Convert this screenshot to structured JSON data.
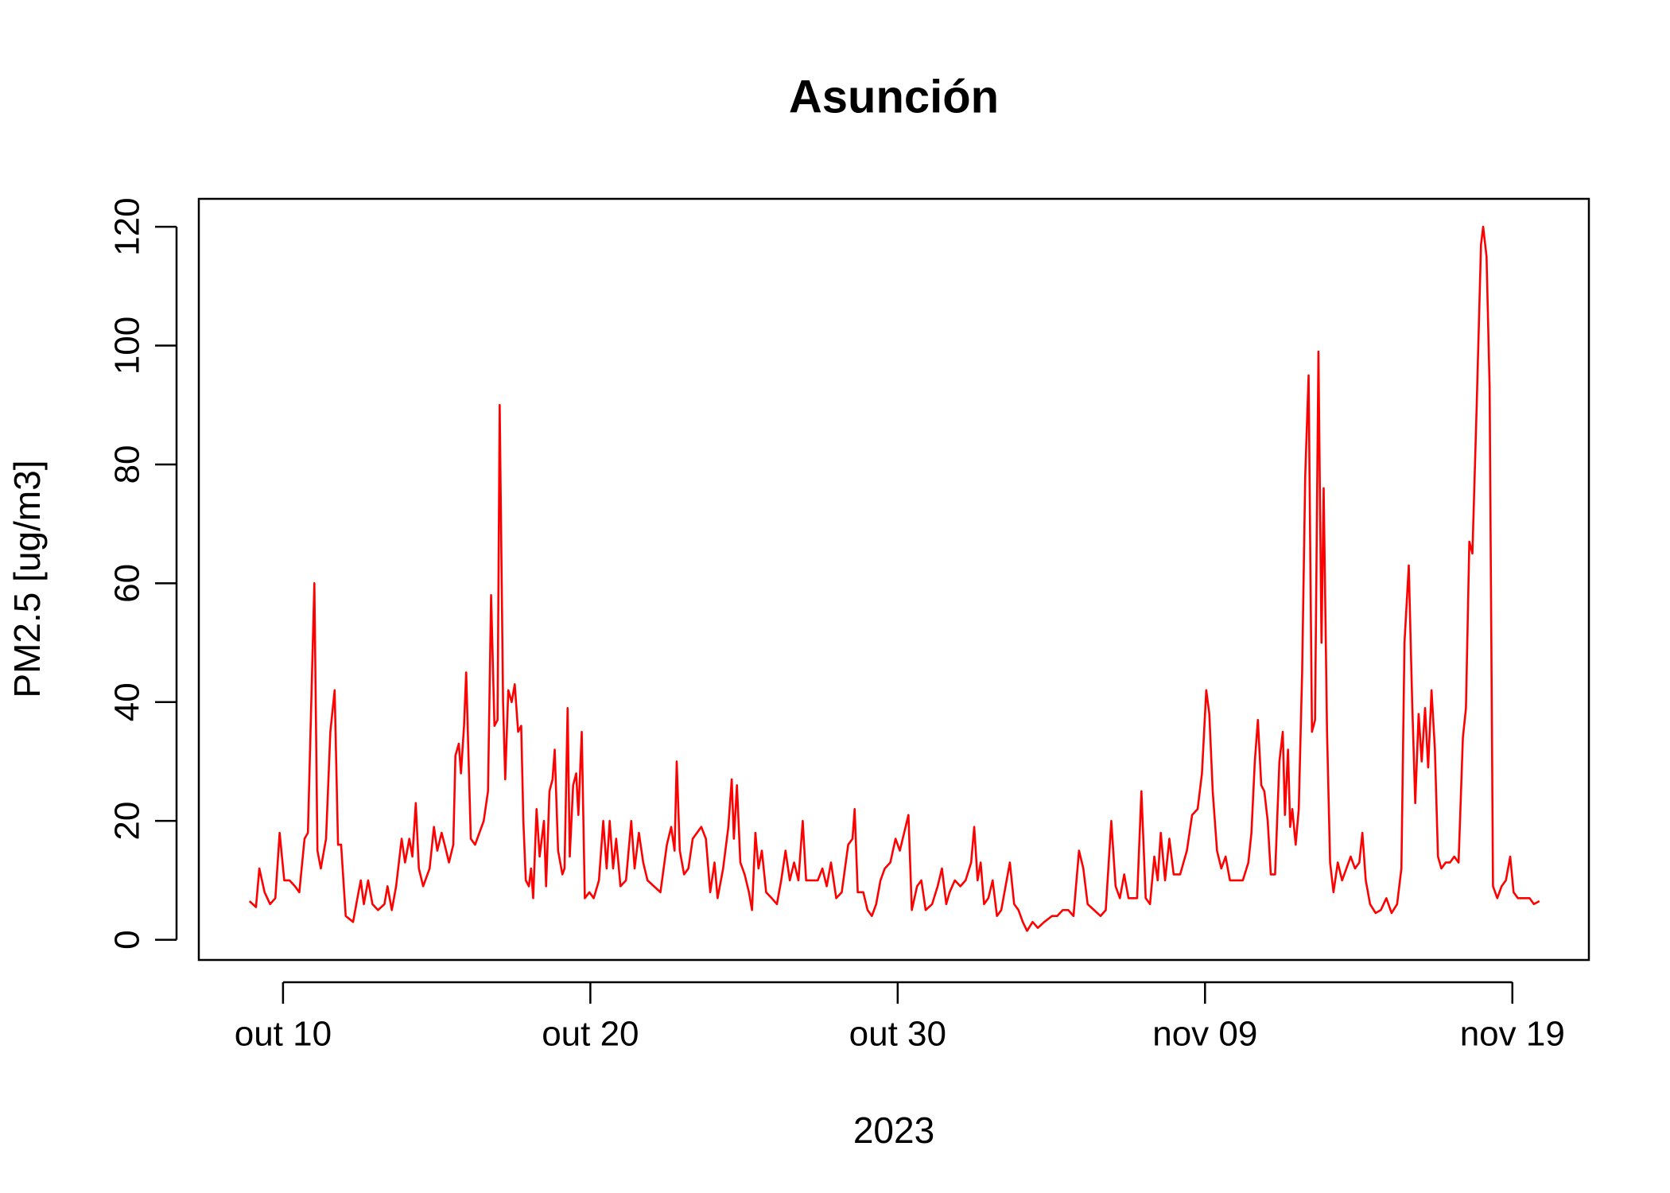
{
  "chart_data": {
    "type": "line",
    "title": "Asunción",
    "x_label": "2023",
    "y_label": "PM2.5 [ug/m3]",
    "xlim": [
      7.26,
      52.49
    ],
    "ylim": [
      -3.4,
      124.7
    ],
    "xticks": [
      {
        "value": 10,
        "label": "out 10"
      },
      {
        "value": 20,
        "label": "out 20"
      },
      {
        "value": 30,
        "label": "out 30"
      },
      {
        "value": 40,
        "label": "nov 09"
      },
      {
        "value": 50,
        "label": "nov 19"
      }
    ],
    "yticks": [
      0,
      20,
      40,
      60,
      80,
      100,
      120
    ],
    "x": [
      8.91,
      9.12,
      9.23,
      9.4,
      9.58,
      9.75,
      9.89,
      10.04,
      10.21,
      10.39,
      10.53,
      10.7,
      10.81,
      10.91,
      11.02,
      11.12,
      11.23,
      11.4,
      11.54,
      11.68,
      11.79,
      11.89,
      12.04,
      12.28,
      12.42,
      12.53,
      12.63,
      12.77,
      12.91,
      13.09,
      13.3,
      13.4,
      13.54,
      13.68,
      13.86,
      13.97,
      14.11,
      14.21,
      14.32,
      14.42,
      14.56,
      14.77,
      14.91,
      15.02,
      15.16,
      15.26,
      15.4,
      15.54,
      15.61,
      15.72,
      15.79,
      15.89,
      15.96,
      16.11,
      16.25,
      16.39,
      16.53,
      16.67,
      16.77,
      16.88,
      16.98,
      17.05,
      17.16,
      17.23,
      17.33,
      17.44,
      17.54,
      17.65,
      17.75,
      17.82,
      17.9,
      18.0,
      18.07,
      18.14,
      18.25,
      18.35,
      18.49,
      18.56,
      18.67,
      18.77,
      18.84,
      18.95,
      19.09,
      19.16,
      19.26,
      19.33,
      19.44,
      19.54,
      19.61,
      19.72,
      19.82,
      19.97,
      20.11,
      20.28,
      20.42,
      20.53,
      20.63,
      20.74,
      20.84,
      20.98,
      21.16,
      21.33,
      21.44,
      21.58,
      21.72,
      21.86,
      22.07,
      22.28,
      22.49,
      22.63,
      22.74,
      22.81,
      22.91,
      23.05,
      23.19,
      23.33,
      23.47,
      23.61,
      23.76,
      23.9,
      24.04,
      24.14,
      24.32,
      24.49,
      24.6,
      24.67,
      24.77,
      24.88,
      25.02,
      25.16,
      25.26,
      25.37,
      25.47,
      25.58,
      25.72,
      25.9,
      26.07,
      26.21,
      26.35,
      26.49,
      26.63,
      26.77,
      26.91,
      27.02,
      27.19,
      27.4,
      27.55,
      27.69,
      27.83,
      28.0,
      28.18,
      28.39,
      28.53,
      28.6,
      28.7,
      28.88,
      29.02,
      29.16,
      29.3,
      29.44,
      29.58,
      29.76,
      29.93,
      30.07,
      30.21,
      30.35,
      30.46,
      30.63,
      30.77,
      30.91,
      31.12,
      31.3,
      31.44,
      31.58,
      31.69,
      31.86,
      32.04,
      32.21,
      32.39,
      32.49,
      32.6,
      32.7,
      32.81,
      32.95,
      33.09,
      33.23,
      33.37,
      33.51,
      33.65,
      33.79,
      33.93,
      34.07,
      34.21,
      34.39,
      34.56,
      34.77,
      35.02,
      35.19,
      35.37,
      35.55,
      35.72,
      35.9,
      36.04,
      36.18,
      36.39,
      36.6,
      36.77,
      36.95,
      37.09,
      37.23,
      37.37,
      37.51,
      37.65,
      37.79,
      37.93,
      38.07,
      38.21,
      38.35,
      38.46,
      38.56,
      38.7,
      38.84,
      38.98,
      39.19,
      39.41,
      39.58,
      39.76,
      39.9,
      40.04,
      40.14,
      40.25,
      40.39,
      40.53,
      40.67,
      40.81,
      41.02,
      41.23,
      41.41,
      41.51,
      41.62,
      41.72,
      41.83,
      41.93,
      42.04,
      42.14,
      42.28,
      42.42,
      42.53,
      42.6,
      42.7,
      42.77,
      42.84,
      42.95,
      43.05,
      43.16,
      43.26,
      43.37,
      43.48,
      43.58,
      43.69,
      43.79,
      43.86,
      43.97,
      44.07,
      44.18,
      44.32,
      44.46,
      44.6,
      44.74,
      44.88,
      45.02,
      45.12,
      45.23,
      45.37,
      45.55,
      45.72,
      45.9,
      46.07,
      46.25,
      46.39,
      46.49,
      46.63,
      46.74,
      46.84,
      46.95,
      47.05,
      47.16,
      47.26,
      47.37,
      47.48,
      47.58,
      47.69,
      47.83,
      47.97,
      48.11,
      48.25,
      48.39,
      48.49,
      48.6,
      48.7,
      48.84,
      48.98,
      49.05,
      49.16,
      49.26,
      49.37,
      49.51,
      49.65,
      49.79,
      49.93,
      50.04,
      50.18,
      50.35,
      50.56,
      50.7,
      50.88
    ],
    "series": [
      {
        "color": "#ff0000",
        "values": [
          6.5,
          5.5,
          12,
          8,
          6,
          7,
          18,
          10,
          10,
          9,
          8,
          17,
          18,
          38,
          60,
          15,
          12,
          17,
          35,
          42,
          16,
          16,
          4,
          3,
          7,
          10,
          6,
          10,
          6,
          5,
          6,
          9,
          5,
          9,
          17,
          13,
          17,
          14,
          23,
          12,
          9,
          12,
          19,
          15,
          18,
          16,
          13,
          16,
          31,
          33,
          28,
          36,
          45,
          17,
          16,
          18,
          20,
          25,
          58,
          36,
          37,
          90,
          40,
          27,
          42,
          40,
          43,
          35,
          36,
          20,
          10,
          9,
          12,
          7,
          22,
          14,
          20,
          9,
          25,
          27,
          32,
          15,
          11,
          12,
          39,
          14,
          26,
          28,
          21,
          35,
          7,
          8,
          7,
          10,
          20,
          12,
          20,
          12,
          17,
          9,
          10,
          20,
          12,
          18,
          13,
          10,
          9,
          8,
          16,
          19,
          15,
          30,
          15,
          11,
          12,
          17,
          18,
          19,
          17,
          8,
          13,
          7,
          12,
          19,
          27,
          17,
          26,
          13,
          11,
          8,
          5,
          18,
          12,
          15,
          8,
          7,
          6,
          10,
          15,
          10,
          13,
          10,
          20,
          10,
          10,
          10,
          12,
          9,
          13,
          7,
          8,
          16,
          17,
          22,
          8,
          8,
          5,
          4,
          6,
          10,
          12,
          13,
          17,
          15,
          18,
          21,
          5,
          9,
          10,
          5,
          6,
          9,
          12,
          6,
          8,
          10,
          9,
          10,
          13,
          19,
          10,
          13,
          6,
          7,
          10,
          4,
          5,
          9,
          13,
          6,
          5,
          3,
          1.5,
          3,
          2,
          3,
          4,
          4,
          5,
          5,
          4,
          15,
          12,
          6,
          5,
          4,
          5,
          20,
          9,
          7,
          11,
          7,
          7,
          7,
          25,
          7,
          6,
          14,
          10,
          18,
          10,
          17,
          11,
          11,
          15,
          21,
          22,
          28,
          42,
          38,
          25,
          15,
          12,
          14,
          10,
          10,
          10,
          13,
          18,
          30,
          37,
          26,
          25,
          20,
          11,
          11,
          30,
          35,
          21,
          32,
          19,
          22,
          16,
          22,
          45,
          78,
          95,
          35,
          37,
          99,
          50,
          76,
          35,
          13,
          8,
          13,
          10,
          12,
          14,
          12,
          13,
          18,
          10,
          6,
          4.5,
          5,
          7,
          4.5,
          6,
          12,
          50,
          63,
          40,
          23,
          38,
          30,
          39,
          29,
          42,
          32,
          14,
          12,
          13,
          13,
          14,
          13,
          34,
          39,
          67,
          65,
          90,
          117,
          120,
          115,
          93,
          9,
          7,
          9,
          10,
          14,
          8,
          7,
          7,
          7,
          6,
          6.5
        ]
      }
    ]
  }
}
